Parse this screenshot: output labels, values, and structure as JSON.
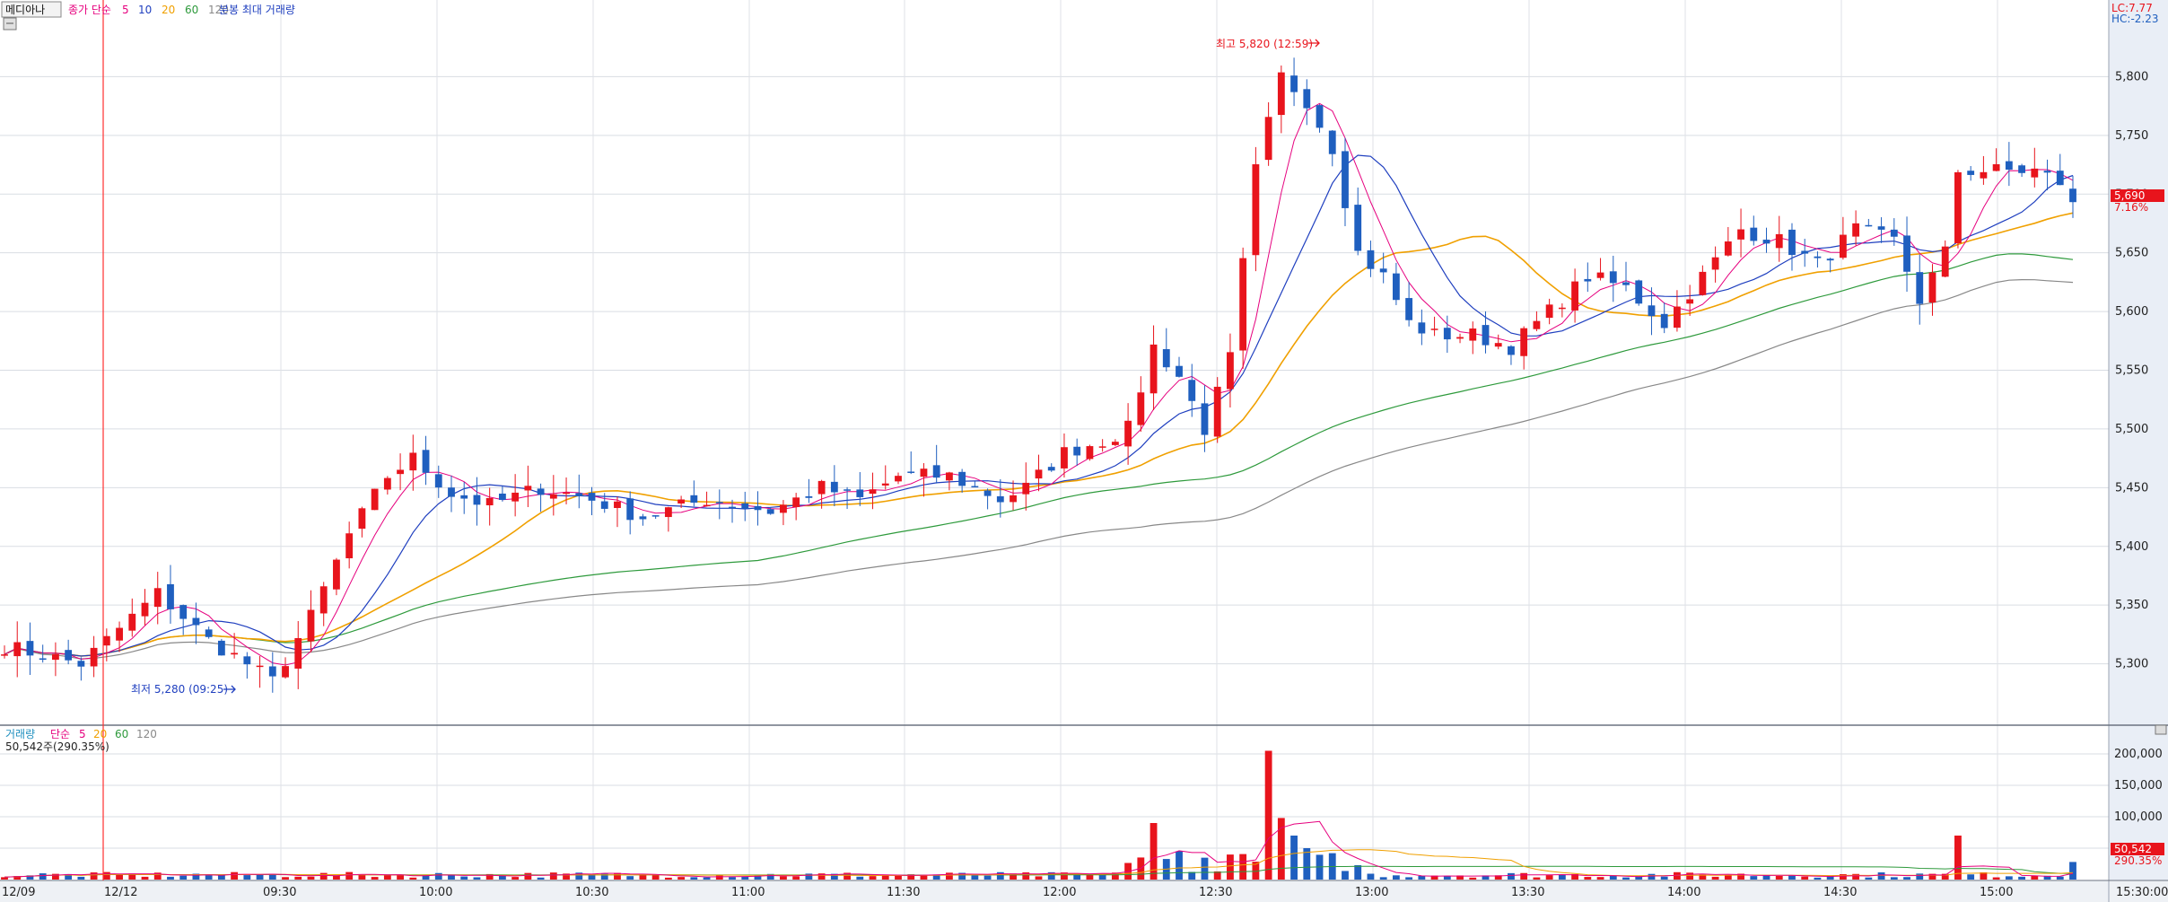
{
  "header": {
    "stock_name": "메디아나",
    "price_legend_prefix": "종가 단순",
    "price_ma_labels": [
      "5",
      "10",
      "20",
      "60",
      "120"
    ],
    "price_ma_colors": [
      "#e6007e",
      "#1f3fbf",
      "#f0a000",
      "#2e9a3c",
      "#888888"
    ],
    "extra_label": "분봉 최대 거래량",
    "lc_label": "LC:7.77",
    "hc_label": "HC:-2.23"
  },
  "volume_header": {
    "legend_prefix": "거래량",
    "legend_simple": "단순",
    "ma_labels": [
      "5",
      "20",
      "60",
      "120"
    ],
    "ma_colors": [
      "#e6007e",
      "#f0a000",
      "#2e9a3c",
      "#888888"
    ],
    "current": "50,542주(290.35%)"
  },
  "annotations": {
    "high": "최고 5,820 (12:59)",
    "low": "최저 5,280 (09:25)"
  },
  "current_price": {
    "value": "5,690",
    "pct": "7.16%"
  },
  "current_volume": {
    "value": "50,542",
    "pct": "290.35%"
  },
  "colors": {
    "up": "#e8141c",
    "down": "#1f5fbf",
    "ma5": "#e6007e",
    "ma10": "#1f3fbf",
    "ma20": "#f0a000",
    "ma60": "#2e9a3c",
    "ma120": "#888888"
  },
  "chart_data": {
    "type": "candlestick",
    "price_axis": {
      "range": [
        5250,
        5850
      ],
      "ticks": [
        5300,
        5350,
        5400,
        5450,
        5500,
        5550,
        5600,
        5650,
        5700,
        5750,
        5800
      ],
      "tick_labels": [
        "5,300",
        "5,350",
        "5,400",
        "5,450",
        "5,500",
        "5,550",
        "5,600",
        "5,650",
        "5,700",
        "5,750",
        "5,800"
      ]
    },
    "volume_axis": {
      "range": [
        0,
        240000
      ],
      "ticks": [
        50000,
        100000,
        150000,
        200000
      ],
      "tick_labels": [
        "",
        "100,000",
        "150,000",
        "200,000"
      ]
    },
    "time_axis": {
      "labels": [
        "12/09",
        "12/12",
        "09:30",
        "10:00",
        "10:30",
        "11:00",
        "11:30",
        "12:00",
        "12:30",
        "13:00",
        "13:30",
        "14:00",
        "14:30",
        "15:00",
        "15:30:00"
      ]
    },
    "grid": true,
    "session_divider": "12/12",
    "price_keypoints": [
      [
        0,
        5315
      ],
      [
        6,
        5300
      ],
      [
        9,
        5330
      ],
      [
        12,
        5360
      ],
      [
        14,
        5340
      ],
      [
        16,
        5320
      ],
      [
        19,
        5300
      ],
      [
        21,
        5285
      ],
      [
        24,
        5340
      ],
      [
        27,
        5410
      ],
      [
        30,
        5460
      ],
      [
        32,
        5475
      ],
      [
        35,
        5445
      ],
      [
        38,
        5435
      ],
      [
        42,
        5450
      ],
      [
        46,
        5440
      ],
      [
        50,
        5425
      ],
      [
        55,
        5440
      ],
      [
        60,
        5430
      ],
      [
        64,
        5450
      ],
      [
        67,
        5440
      ],
      [
        70,
        5460
      ],
      [
        74,
        5460
      ],
      [
        78,
        5440
      ],
      [
        80,
        5450
      ],
      [
        83,
        5480
      ],
      [
        86,
        5490
      ],
      [
        88,
        5500
      ],
      [
        90,
        5570
      ],
      [
        92,
        5545
      ],
      [
        94,
        5500
      ],
      [
        96,
        5560
      ],
      [
        98,
        5720
      ],
      [
        100,
        5800
      ],
      [
        102,
        5780
      ],
      [
        104,
        5740
      ],
      [
        106,
        5650
      ],
      [
        108,
        5630
      ],
      [
        110,
        5590
      ],
      [
        112,
        5580
      ],
      [
        115,
        5580
      ],
      [
        118,
        5570
      ],
      [
        121,
        5600
      ],
      [
        124,
        5630
      ],
      [
        127,
        5620
      ],
      [
        130,
        5590
      ],
      [
        133,
        5630
      ],
      [
        136,
        5670
      ],
      [
        139,
        5660
      ],
      [
        142,
        5640
      ],
      [
        145,
        5670
      ],
      [
        148,
        5660
      ],
      [
        150,
        5610
      ],
      [
        152,
        5650
      ],
      [
        153,
        5720
      ],
      [
        156,
        5720
      ],
      [
        159,
        5720
      ],
      [
        161,
        5710
      ],
      [
        162,
        5690
      ]
    ],
    "volume_spikes": [
      [
        90,
        90000
      ],
      [
        92,
        45000
      ],
      [
        99,
        205000
      ],
      [
        100,
        98000
      ],
      [
        101,
        70000
      ],
      [
        102,
        50000
      ],
      [
        104,
        42000
      ],
      [
        153,
        70000
      ],
      [
        162,
        28000
      ]
    ]
  }
}
